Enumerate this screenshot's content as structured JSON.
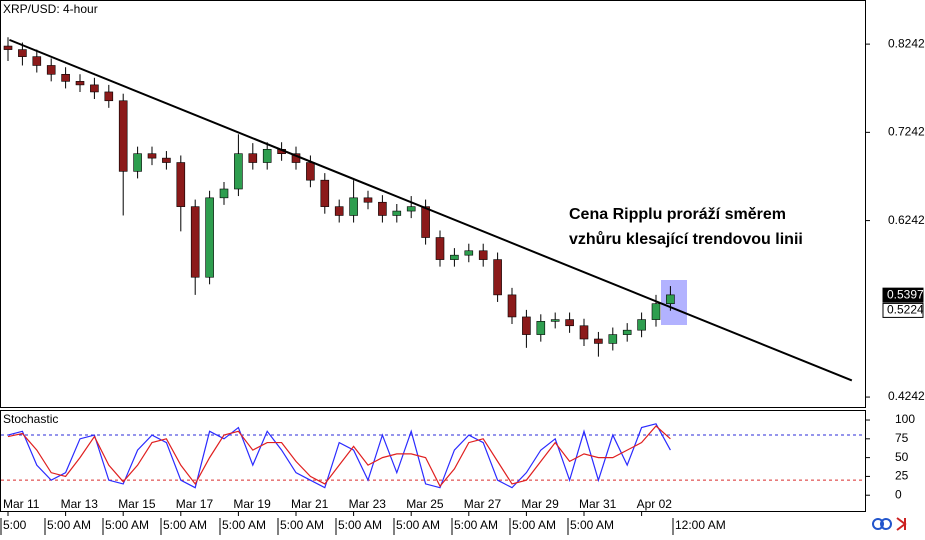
{
  "chart_data": [
    {
      "type": "candlestick",
      "title": "XRP/USD: 4-hour",
      "up_color": "#2e9e4f",
      "down_color": "#8b1a1a",
      "categories": [
        "Mar 11",
        null,
        null,
        null,
        "Mar 13",
        null,
        null,
        null,
        "Mar 15",
        null,
        null,
        null,
        "Mar 17",
        null,
        null,
        null,
        "Mar 19",
        null,
        null,
        null,
        "Mar 21",
        null,
        null,
        null,
        "Mar 23",
        null,
        null,
        null,
        "Mar 25",
        null,
        null,
        null,
        "Mar 27",
        null,
        null,
        null,
        "Mar 29",
        null,
        null,
        null,
        "Mar 31",
        null,
        null,
        null,
        "Apr 02",
        null,
        null
      ],
      "time_labels": [
        "5:00",
        "5:00 AM",
        "5:00 AM",
        "5:00 AM",
        "5:00 AM",
        "5:00 AM",
        "5:00 AM",
        "5:00 AM",
        "5:00 AM",
        "5:00 AM",
        "5:00 AM",
        "12:00 AM"
      ],
      "open": [
        0.822,
        0.818,
        0.81,
        0.8,
        0.79,
        0.782,
        0.778,
        0.77,
        0.76,
        0.68,
        0.7,
        0.695,
        0.69,
        0.64,
        0.56,
        0.65,
        0.66,
        0.7,
        0.69,
        0.705,
        0.7,
        0.69,
        0.67,
        0.64,
        0.63,
        0.65,
        0.645,
        0.63,
        0.635,
        0.64,
        0.605,
        0.58,
        0.585,
        0.59,
        0.58,
        0.54,
        0.515,
        0.495,
        0.51,
        0.512,
        0.505,
        0.49,
        0.485,
        0.495,
        0.5,
        0.512,
        0.53
      ],
      "high": [
        0.832,
        0.826,
        0.818,
        0.808,
        0.798,
        0.79,
        0.786,
        0.778,
        0.768,
        0.708,
        0.708,
        0.703,
        0.698,
        0.648,
        0.658,
        0.668,
        0.722,
        0.712,
        0.713,
        0.713,
        0.708,
        0.698,
        0.678,
        0.648,
        0.67,
        0.658,
        0.653,
        0.643,
        0.652,
        0.648,
        0.613,
        0.593,
        0.598,
        0.598,
        0.588,
        0.548,
        0.523,
        0.518,
        0.52,
        0.52,
        0.513,
        0.498,
        0.503,
        0.508,
        0.52,
        0.54,
        0.55
      ],
      "low": [
        0.805,
        0.8,
        0.792,
        0.782,
        0.774,
        0.77,
        0.762,
        0.752,
        0.63,
        0.672,
        0.687,
        0.682,
        0.612,
        0.54,
        0.552,
        0.642,
        0.652,
        0.682,
        0.682,
        0.692,
        0.682,
        0.662,
        0.632,
        0.622,
        0.622,
        0.637,
        0.622,
        0.622,
        0.627,
        0.597,
        0.572,
        0.572,
        0.577,
        0.572,
        0.532,
        0.507,
        0.48,
        0.487,
        0.502,
        0.497,
        0.482,
        0.47,
        0.477,
        0.487,
        0.492,
        0.504,
        0.522
      ],
      "close": [
        0.818,
        0.81,
        0.8,
        0.79,
        0.782,
        0.778,
        0.77,
        0.76,
        0.68,
        0.7,
        0.695,
        0.69,
        0.64,
        0.56,
        0.65,
        0.66,
        0.7,
        0.69,
        0.705,
        0.7,
        0.69,
        0.67,
        0.64,
        0.63,
        0.65,
        0.645,
        0.63,
        0.635,
        0.64,
        0.605,
        0.58,
        0.585,
        0.59,
        0.58,
        0.54,
        0.515,
        0.495,
        0.51,
        0.512,
        0.505,
        0.49,
        0.485,
        0.495,
        0.5,
        0.512,
        0.53,
        0.54
      ],
      "ylim": [
        0.4118,
        0.8742
      ],
      "yticks": [
        0.8242,
        0.7242,
        0.6242,
        0.4242
      ],
      "current_prices": [
        0.5397,
        0.5224
      ],
      "trendline": {
        "start": [
          0.1,
          0.829
        ],
        "end": [
          58.6,
          0.443
        ],
        "color": "#000000"
      },
      "annotation": [
        "Cena Ripplu proráží směrem",
        "vzhůru klesající trendovou linii"
      ]
    },
    {
      "type": "line",
      "title": "Stochastic",
      "ylim": [
        -21,
        112
      ],
      "yticks": [
        100,
        75,
        50,
        25,
        0
      ],
      "levels": [
        {
          "value": 80,
          "color": "#2b2bd9"
        },
        {
          "value": 20,
          "color": "#d92b2b"
        }
      ],
      "series": [
        {
          "color": "#2b2bff",
          "values": [
            80,
            85,
            40,
            20,
            30,
            75,
            80,
            20,
            15,
            60,
            80,
            70,
            20,
            10,
            85,
            75,
            90,
            40,
            85,
            60,
            30,
            20,
            10,
            70,
            60,
            20,
            80,
            30,
            85,
            15,
            10,
            60,
            80,
            70,
            20,
            10,
            30,
            60,
            75,
            20,
            85,
            20,
            80,
            40,
            90,
            95,
            60
          ]
        },
        {
          "color": "#e02020",
          "values": [
            78,
            82,
            60,
            30,
            25,
            50,
            78,
            40,
            18,
            40,
            70,
            75,
            40,
            15,
            50,
            80,
            85,
            60,
            70,
            70,
            45,
            25,
            15,
            40,
            65,
            40,
            50,
            55,
            55,
            50,
            12,
            35,
            70,
            75,
            45,
            15,
            20,
            45,
            70,
            45,
            55,
            50,
            50,
            60,
            70,
            92,
            75
          ]
        }
      ]
    }
  ]
}
